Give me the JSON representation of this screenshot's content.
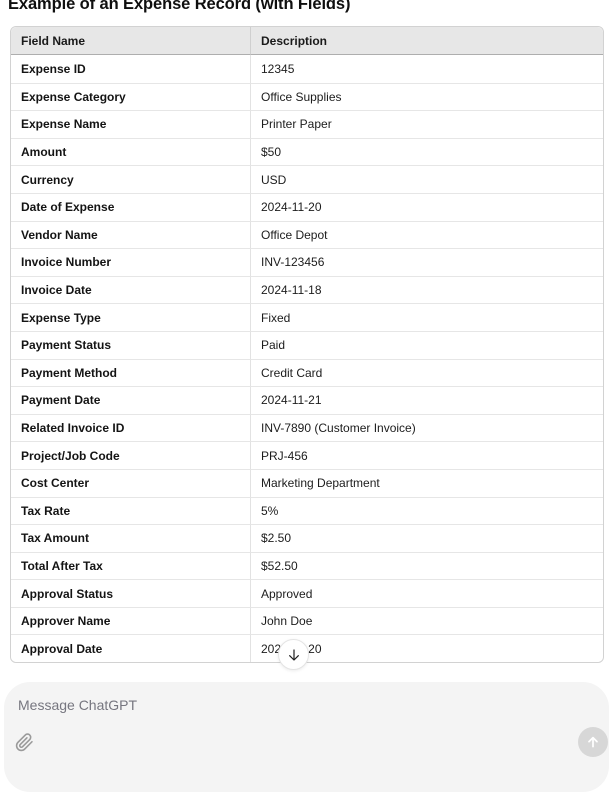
{
  "title": "Example of an Expense Record (with Fields)",
  "table": {
    "headers": [
      "Field Name",
      "Description"
    ],
    "rows": [
      {
        "field": "Expense ID",
        "description": "12345"
      },
      {
        "field": "Expense Category",
        "description": "Office Supplies"
      },
      {
        "field": "Expense Name",
        "description": "Printer Paper"
      },
      {
        "field": "Amount",
        "description": "$50"
      },
      {
        "field": "Currency",
        "description": "USD"
      },
      {
        "field": "Date of Expense",
        "description": "2024-11-20"
      },
      {
        "field": "Vendor Name",
        "description": "Office Depot"
      },
      {
        "field": "Invoice Number",
        "description": "INV-123456"
      },
      {
        "field": "Invoice Date",
        "description": "2024-11-18"
      },
      {
        "field": "Expense Type",
        "description": "Fixed"
      },
      {
        "field": "Payment Status",
        "description": "Paid"
      },
      {
        "field": "Payment Method",
        "description": "Credit Card"
      },
      {
        "field": "Payment Date",
        "description": "2024-11-21"
      },
      {
        "field": "Related Invoice ID",
        "description": "INV-7890 (Customer Invoice)"
      },
      {
        "field": "Project/Job Code",
        "description": "PRJ-456"
      },
      {
        "field": "Cost Center",
        "description": "Marketing Department"
      },
      {
        "field": "Tax Rate",
        "description": "5%"
      },
      {
        "field": "Tax Amount",
        "description": "$2.50"
      },
      {
        "field": "Total After Tax",
        "description": "$52.50"
      },
      {
        "field": "Approval Status",
        "description": "Approved"
      },
      {
        "field": "Approver Name",
        "description": "John Doe"
      },
      {
        "field": "Approval Date",
        "description": "2024-11-20"
      }
    ]
  },
  "scroll_button": {
    "icon": "arrow-down-icon"
  },
  "composer": {
    "placeholder": "Message ChatGPT",
    "attach_icon": "paperclip-icon",
    "send_icon": "arrow-up-icon"
  },
  "colors": {
    "header_bg": "#e7e7e7",
    "table_border": "#d2d2d2",
    "row_border": "#e6e6e6",
    "composer_bg": "#f4f4f4",
    "send_button_bg": "#d7d7d7",
    "placeholder_text": "#76767f"
  }
}
